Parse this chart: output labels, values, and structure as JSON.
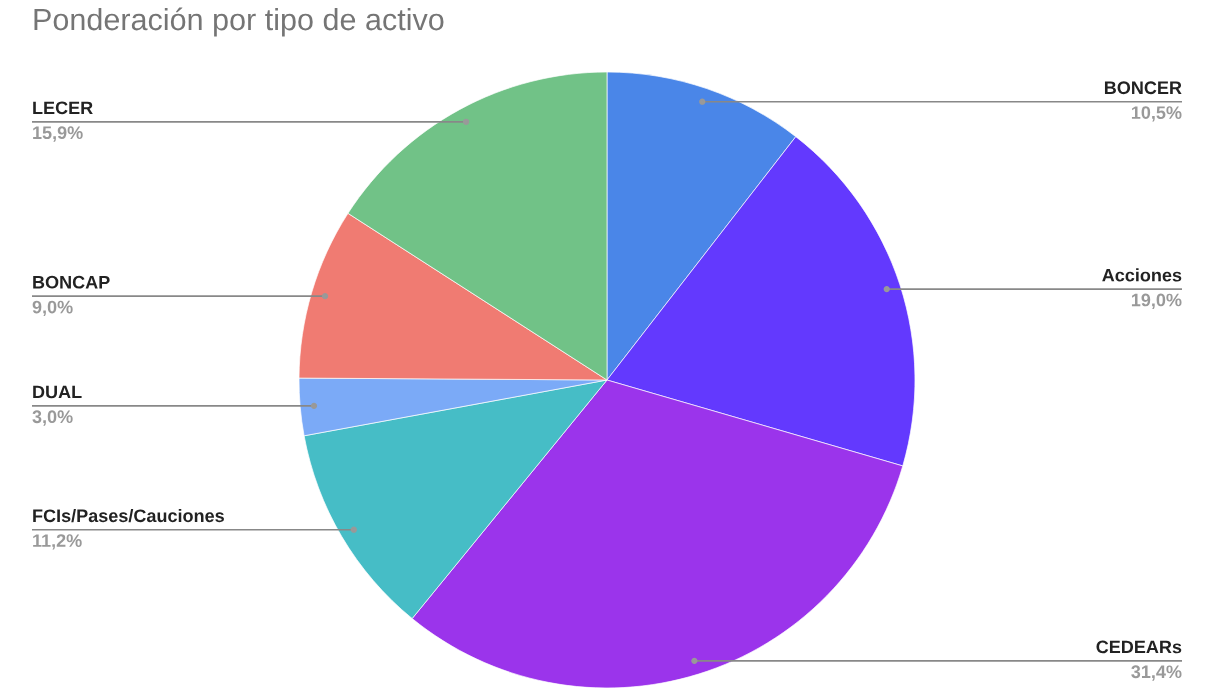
{
  "chart_data": {
    "type": "pie",
    "title": "Ponderación por tipo de activo",
    "categories": [
      "BONCER",
      "Acciones",
      "CEDEARs",
      "FCIs/Pases/Cauciones",
      "DUAL",
      "BONCAP",
      "LECER"
    ],
    "values": [
      10.5,
      19.0,
      31.4,
      11.2,
      3.0,
      9.0,
      15.9
    ],
    "colors": [
      "#4a86e8",
      "#6339fe",
      "#9b34eb",
      "#46bdc6",
      "#7baaf7",
      "#f07b72",
      "#71c287"
    ],
    "value_labels": [
      "10,5%",
      "19,0%",
      "31,4%",
      "11,2%",
      "3,0%",
      "9,0%",
      "15,9%"
    ]
  }
}
